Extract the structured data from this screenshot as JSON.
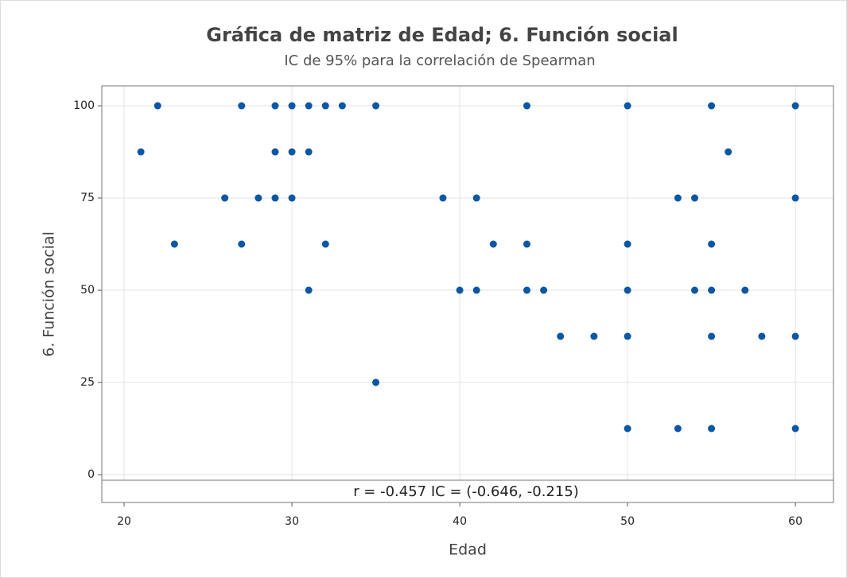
{
  "chart_data": {
    "type": "scatter",
    "title": "Gráfica de matriz de Edad; 6. Función social",
    "subtitle": "IC de 95% para la correlación de Spearman",
    "x_label": "Edad",
    "y_label": "6. Función social",
    "annotation": "r = -0.457  IC = (-0.646, -0.215)",
    "color": "#0b57a4",
    "grid": true,
    "x": [
      22,
      27,
      29,
      30,
      31,
      32,
      33,
      35,
      44,
      50,
      55,
      60,
      21,
      29,
      30,
      31,
      56,
      26,
      28,
      29,
      30,
      39,
      41,
      53,
      54,
      60,
      23,
      27,
      32,
      42,
      44,
      50,
      55,
      31,
      40,
      41,
      44,
      45,
      50,
      54,
      55,
      57,
      46,
      48,
      50,
      55,
      58,
      60,
      35,
      50,
      53,
      55,
      60
    ],
    "values": [
      100,
      100,
      100,
      100,
      100,
      100,
      100,
      100,
      100,
      100,
      100,
      100,
      87.5,
      87.5,
      87.5,
      87.5,
      87.5,
      75,
      75,
      75,
      75,
      75,
      75,
      75,
      75,
      75,
      62.5,
      62.5,
      62.5,
      62.5,
      62.5,
      62.5,
      62.5,
      50,
      50,
      50,
      50,
      50,
      50,
      50,
      50,
      50,
      37.5,
      37.5,
      37.5,
      37.5,
      37.5,
      37.5,
      25,
      12.5,
      12.5,
      12.5,
      12.5
    ],
    "xlim": [
      18.67,
      62.27
    ],
    "xticks": [
      20,
      30,
      40,
      50,
      60
    ],
    "ylim": [
      -1.5,
      105.4
    ],
    "yticks": [
      0,
      25,
      50,
      75,
      100
    ]
  }
}
